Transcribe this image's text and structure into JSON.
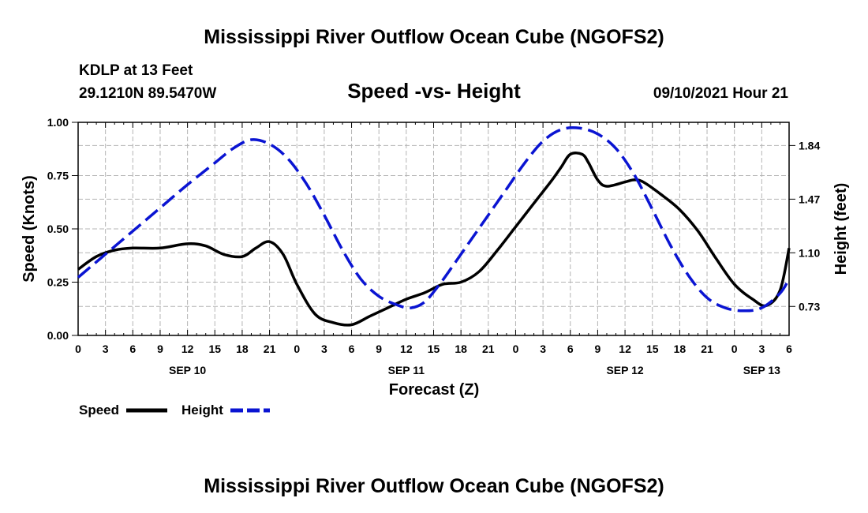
{
  "header": {
    "title_top": "Mississippi River Outflow Ocean Cube (NGOFS2)",
    "title_bottom": "Mississippi River Outflow Ocean Cube (NGOFS2)",
    "station": "KDLP at 13 Feet",
    "coords": "29.1210N  89.5470W",
    "subtitle": "Speed -vs- Height",
    "datetime": "09/10/2021 Hour 21"
  },
  "legend": {
    "speed_label": "Speed",
    "height_label": "Height"
  },
  "colors": {
    "speed": "#000000",
    "height": "#0a14d2",
    "grid": "#b4b4b4"
  },
  "chart_data": {
    "type": "line",
    "title": "Speed -vs- Height",
    "xlabel": "Forecast (Z)",
    "ylabel": "Speed (Knots)",
    "y2label": "Height (feet)",
    "xlim": [
      0,
      78
    ],
    "ylim": [
      0,
      1.0
    ],
    "y2lim": [
      0.53,
      2.0
    ],
    "x_ticks": [
      0,
      3,
      6,
      9,
      12,
      15,
      18,
      21,
      24,
      27,
      30,
      33,
      36,
      39,
      42,
      45,
      48,
      51,
      54,
      57,
      60,
      63,
      66,
      69,
      72,
      75,
      78
    ],
    "x_tick_labels": [
      "0",
      "3",
      "6",
      "9",
      "12",
      "15",
      "18",
      "21",
      "0",
      "3",
      "6",
      "9",
      "12",
      "15",
      "18",
      "21",
      "0",
      "3",
      "6",
      "9",
      "12",
      "15",
      "18",
      "21",
      "0",
      "3",
      "6"
    ],
    "date_labels": [
      {
        "x": 12,
        "label": "SEP 10"
      },
      {
        "x": 36,
        "label": "SEP 11"
      },
      {
        "x": 60,
        "label": "SEP 12"
      },
      {
        "x": 75,
        "label": "SEP 13"
      }
    ],
    "y_ticks": [
      0,
      0.25,
      0.5,
      0.75,
      1.0
    ],
    "y_tick_labels": [
      "0.00",
      "0.25",
      "0.50",
      "0.75",
      "1.00"
    ],
    "y2_ticks": [
      0.73,
      1.1,
      1.47,
      1.84
    ],
    "y2_tick_labels": [
      "0.73",
      "1.10",
      "1.47",
      "1.84"
    ],
    "grid": true,
    "series": [
      {
        "name": "Speed",
        "axis": "left",
        "style": "solid",
        "x": [
          0,
          2,
          4,
          6,
          9,
          12,
          14,
          16,
          18,
          19.5,
          21,
          22.5,
          24,
          26,
          28,
          30,
          32,
          34,
          36,
          38,
          40,
          42,
          44,
          46,
          48,
          50,
          52,
          53,
          54,
          55.3,
          56,
          57,
          58,
          60,
          61,
          62,
          64,
          66,
          68,
          70,
          72,
          74,
          75.5,
          77,
          78
        ],
        "values": [
          0.31,
          0.37,
          0.4,
          0.41,
          0.41,
          0.43,
          0.42,
          0.38,
          0.37,
          0.41,
          0.44,
          0.38,
          0.24,
          0.1,
          0.06,
          0.05,
          0.09,
          0.13,
          0.17,
          0.2,
          0.24,
          0.25,
          0.3,
          0.4,
          0.51,
          0.62,
          0.73,
          0.79,
          0.85,
          0.85,
          0.81,
          0.73,
          0.7,
          0.72,
          0.73,
          0.72,
          0.66,
          0.59,
          0.49,
          0.36,
          0.24,
          0.17,
          0.14,
          0.21,
          0.41
        ]
      },
      {
        "name": "Height",
        "axis": "right",
        "style": "dashed",
        "x": [
          0,
          3,
          6,
          9,
          12,
          15,
          17,
          19,
          21,
          23,
          25,
          27,
          29,
          31,
          33,
          35,
          36.5,
          38,
          39.5,
          41,
          43,
          45,
          47,
          49,
          51,
          53,
          55,
          57,
          59,
          61,
          63,
          65,
          67,
          69,
          71,
          73,
          75,
          77,
          78
        ],
        "values": [
          0.93,
          1.09,
          1.25,
          1.41,
          1.57,
          1.72,
          1.82,
          1.88,
          1.85,
          1.75,
          1.58,
          1.36,
          1.12,
          0.92,
          0.8,
          0.74,
          0.72,
          0.76,
          0.87,
          1.0,
          1.18,
          1.36,
          1.54,
          1.72,
          1.87,
          1.95,
          1.96,
          1.92,
          1.82,
          1.64,
          1.4,
          1.15,
          0.94,
          0.79,
          0.72,
          0.7,
          0.72,
          0.82,
          0.92
        ]
      }
    ]
  }
}
